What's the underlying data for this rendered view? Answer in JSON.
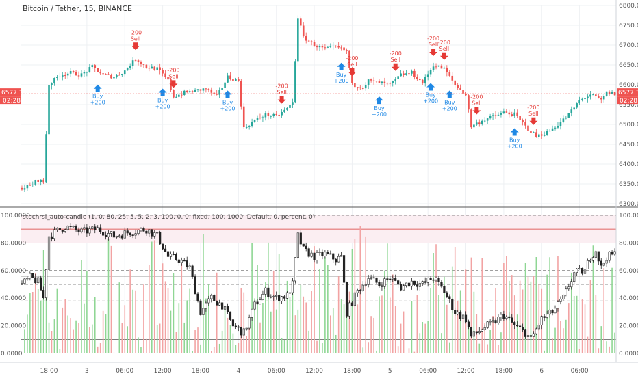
{
  "colors": {
    "up": "#26a69a",
    "down": "#ef5350",
    "buy": "#1e88e5",
    "sell": "#e53935",
    "grid": "#eef0f3",
    "osc_green": "#8fd694",
    "osc_red": "#f2a3a3",
    "hline_red": "#e57373",
    "tag_bg": "#ef5350"
  },
  "chart_data": [
    {
      "type": "candlestick",
      "title": "Bitcoin / Tether, 15, BINANCE",
      "ylim": [
        6300,
        6800
      ],
      "y_ticks": [
        "6800.00",
        "6750.00",
        "6700.00",
        "6650.00",
        "6600.00",
        "6550.00",
        "6500.00",
        "6450.00",
        "6400.00",
        "6350.00",
        "6300.00"
      ],
      "last_price": "6577.36",
      "countdown": "02:28",
      "anchors": [
        [
          0,
          6340
        ],
        [
          3,
          6345
        ],
        [
          6,
          6360
        ],
        [
          8,
          6355
        ],
        [
          10,
          6600
        ],
        [
          14,
          6625
        ],
        [
          18,
          6630
        ],
        [
          22,
          6625
        ],
        [
          26,
          6645
        ],
        [
          30,
          6625
        ],
        [
          34,
          6620
        ],
        [
          38,
          6635
        ],
        [
          42,
          6665
        ],
        [
          46,
          6645
        ],
        [
          50,
          6640
        ],
        [
          54,
          6610
        ],
        [
          56,
          6570
        ],
        [
          60,
          6580
        ],
        [
          64,
          6585
        ],
        [
          68,
          6590
        ],
        [
          72,
          6570
        ],
        [
          76,
          6620
        ],
        [
          80,
          6610
        ],
        [
          82,
          6490
        ],
        [
          86,
          6510
        ],
        [
          90,
          6525
        ],
        [
          94,
          6520
        ],
        [
          98,
          6540
        ],
        [
          100,
          6555
        ],
        [
          102,
          6770
        ],
        [
          104,
          6720
        ],
        [
          108,
          6700
        ],
        [
          112,
          6690
        ],
        [
          116,
          6695
        ],
        [
          120,
          6685
        ],
        [
          122,
          6600
        ],
        [
          126,
          6595
        ],
        [
          128,
          6610
        ],
        [
          132,
          6605
        ],
        [
          136,
          6600
        ],
        [
          140,
          6625
        ],
        [
          144,
          6630
        ],
        [
          148,
          6605
        ],
        [
          152,
          6650
        ],
        [
          156,
          6640
        ],
        [
          160,
          6600
        ],
        [
          164,
          6575
        ],
        [
          166,
          6495
        ],
        [
          170,
          6510
        ],
        [
          174,
          6520
        ],
        [
          178,
          6530
        ],
        [
          182,
          6525
        ],
        [
          186,
          6495
        ],
        [
          190,
          6470
        ],
        [
          194,
          6480
        ],
        [
          198,
          6500
        ],
        [
          202,
          6525
        ],
        [
          206,
          6560
        ],
        [
          210,
          6575
        ],
        [
          214,
          6560
        ],
        [
          216,
          6580
        ],
        [
          219,
          6577
        ]
      ],
      "signals": [
        {
          "index": 42,
          "side": "sell",
          "lines": [
            "-200",
            "Sell"
          ]
        },
        {
          "index": 56,
          "side": "sell",
          "lines": [
            "-200",
            "Sell"
          ]
        },
        {
          "index": 96,
          "side": "sell",
          "lines": [
            "-200",
            "Sell"
          ]
        },
        {
          "index": 122,
          "side": "sell",
          "lines": [
            "-200",
            "Sell"
          ]
        },
        {
          "index": 138,
          "side": "sell",
          "lines": [
            "-200",
            "Sell"
          ]
        },
        {
          "index": 152,
          "side": "sell",
          "lines": [
            "-200",
            "Sell"
          ]
        },
        {
          "index": 156,
          "side": "sell",
          "lines": [
            "-200",
            "Sell"
          ]
        },
        {
          "index": 168,
          "side": "sell",
          "lines": [
            "-200",
            "Sell"
          ]
        },
        {
          "index": 189,
          "side": "sell",
          "lines": [
            "-200",
            "Sell"
          ]
        },
        {
          "index": 28,
          "side": "buy",
          "lines": [
            "Buy",
            "+200"
          ]
        },
        {
          "index": 52,
          "side": "buy",
          "lines": [
            "Buy",
            "+200"
          ]
        },
        {
          "index": 76,
          "side": "buy",
          "lines": [
            "Buy",
            "+200"
          ]
        },
        {
          "index": 118,
          "side": "buy",
          "lines": [
            "Buy",
            "+200"
          ]
        },
        {
          "index": 132,
          "side": "buy",
          "lines": [
            "Buy",
            "+200"
          ]
        },
        {
          "index": 151,
          "side": "buy",
          "lines": [
            "Buy",
            "+200"
          ]
        },
        {
          "index": 158,
          "side": "buy",
          "lines": [
            "Buy",
            "+200"
          ]
        },
        {
          "index": 182,
          "side": "buy",
          "lines": [
            "Buy",
            "+200"
          ]
        }
      ]
    },
    {
      "type": "oscillator",
      "title": "stochrsi_auto-candle (1, 0, 80, 25, 5, 5, 2, 3, 100, 0, 0, fixed, 100, 1000, Default, 0, percent, 0)",
      "ylim": [
        0,
        100
      ],
      "y_ticks": [
        "100.0000",
        "80.0000",
        "60.0000",
        "40.0000",
        "20.0000",
        "0.0000"
      ],
      "hlines_dashed": [
        100,
        80,
        60,
        50,
        38,
        25,
        22
      ],
      "hlines_red": [
        90
      ],
      "hlines_dark": [
        56,
        10
      ],
      "anchors": [
        [
          0,
          50
        ],
        [
          3,
          55
        ],
        [
          6,
          52
        ],
        [
          8,
          40
        ],
        [
          10,
          85
        ],
        [
          16,
          92
        ],
        [
          22,
          88
        ],
        [
          28,
          90
        ],
        [
          34,
          85
        ],
        [
          40,
          88
        ],
        [
          46,
          90
        ],
        [
          50,
          85
        ],
        [
          54,
          70
        ],
        [
          58,
          68
        ],
        [
          62,
          62
        ],
        [
          66,
          30
        ],
        [
          70,
          40
        ],
        [
          74,
          35
        ],
        [
          78,
          20
        ],
        [
          82,
          15
        ],
        [
          86,
          35
        ],
        [
          90,
          45
        ],
        [
          94,
          40
        ],
        [
          98,
          42
        ],
        [
          100,
          50
        ],
        [
          102,
          85
        ],
        [
          104,
          75
        ],
        [
          108,
          70
        ],
        [
          112,
          72
        ],
        [
          116,
          68
        ],
        [
          118,
          70
        ],
        [
          120,
          30
        ],
        [
          124,
          45
        ],
        [
          128,
          55
        ],
        [
          132,
          50
        ],
        [
          136,
          55
        ],
        [
          140,
          48
        ],
        [
          144,
          52
        ],
        [
          148,
          50
        ],
        [
          152,
          55
        ],
        [
          156,
          45
        ],
        [
          160,
          30
        ],
        [
          164,
          25
        ],
        [
          166,
          12
        ],
        [
          170,
          18
        ],
        [
          174,
          22
        ],
        [
          178,
          28
        ],
        [
          182,
          20
        ],
        [
          186,
          15
        ],
        [
          188,
          10
        ],
        [
          192,
          25
        ],
        [
          196,
          30
        ],
        [
          200,
          40
        ],
        [
          204,
          58
        ],
        [
          208,
          60
        ],
        [
          210,
          70
        ],
        [
          212,
          75
        ],
        [
          214,
          62
        ],
        [
          216,
          70
        ],
        [
          219,
          72
        ]
      ]
    }
  ],
  "x_labels": [
    {
      "index": 10,
      "text": "18:00"
    },
    {
      "index": 24,
      "text": "3"
    },
    {
      "index": 38,
      "text": "06:00"
    },
    {
      "index": 52,
      "text": "12:00"
    },
    {
      "index": 66,
      "text": "18:00"
    },
    {
      "index": 80,
      "text": "4"
    },
    {
      "index": 94,
      "text": "06:00"
    },
    {
      "index": 108,
      "text": "12:00"
    },
    {
      "index": 122,
      "text": "18:00"
    },
    {
      "index": 136,
      "text": "5"
    },
    {
      "index": 150,
      "text": "06:00"
    },
    {
      "index": 164,
      "text": "12:00"
    },
    {
      "index": 178,
      "text": "18:00"
    },
    {
      "index": 192,
      "text": "6"
    },
    {
      "index": 206,
      "text": "06:00"
    }
  ]
}
